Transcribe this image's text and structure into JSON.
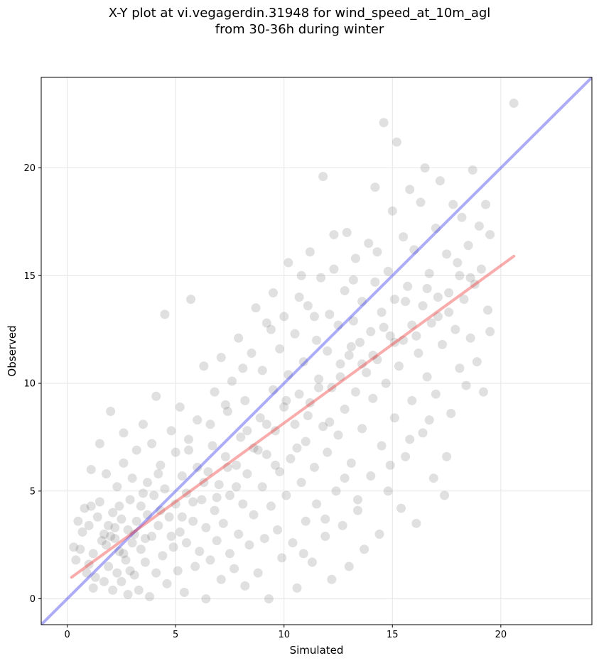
{
  "chart_data": {
    "type": "scatter",
    "title_line1": "X-Y plot at vi.vegagerdin.31948 for wind_speed_at_10m_agl",
    "title_line2": "from 30-36h during winter",
    "xlabel": "Simulated",
    "ylabel": "Observed",
    "xlim": [
      -1.2,
      24.2
    ],
    "ylim": [
      -1.2,
      24.2
    ],
    "xticks": [
      0,
      5,
      10,
      15,
      20
    ],
    "yticks": [
      0,
      5,
      10,
      15,
      20
    ],
    "grid": true,
    "point_color": "#555555",
    "reference_line": {
      "name": "1:1 line",
      "color": "#3030ee",
      "x": [
        -1.2,
        24.2
      ],
      "y": [
        -1.2,
        24.2
      ]
    },
    "regression_line": {
      "name": "fit",
      "color": "#ee3030",
      "x": [
        0.2,
        20.6
      ],
      "y": [
        1.0,
        15.9
      ]
    },
    "points": [
      [
        0.3,
        2.4
      ],
      [
        0.4,
        1.8
      ],
      [
        0.5,
        3.6
      ],
      [
        0.6,
        2.3
      ],
      [
        0.7,
        3.1
      ],
      [
        0.8,
        4.2
      ],
      [
        0.9,
        1.2
      ],
      [
        1.0,
        1.6
      ],
      [
        1.0,
        3.4
      ],
      [
        1.1,
        4.3
      ],
      [
        1.1,
        6.0
      ],
      [
        1.2,
        0.5
      ],
      [
        1.2,
        2.1
      ],
      [
        1.3,
        1.0
      ],
      [
        1.4,
        3.8
      ],
      [
        1.5,
        4.5
      ],
      [
        1.5,
        7.2
      ],
      [
        1.6,
        2.7
      ],
      [
        1.7,
        0.8
      ],
      [
        1.7,
        3.0
      ],
      [
        1.8,
        2.5
      ],
      [
        1.8,
        5.8
      ],
      [
        1.9,
        1.5
      ],
      [
        2.0,
        2.9
      ],
      [
        2.0,
        8.7
      ],
      [
        2.1,
        0.4
      ],
      [
        2.1,
        4.0
      ],
      [
        2.2,
        3.3
      ],
      [
        2.3,
        1.2
      ],
      [
        2.3,
        5.2
      ],
      [
        2.4,
        2.2
      ],
      [
        2.5,
        0.8
      ],
      [
        2.5,
        3.7
      ],
      [
        2.6,
        6.3
      ],
      [
        2.6,
        7.7
      ],
      [
        2.7,
        1.8
      ],
      [
        2.8,
        3.2
      ],
      [
        2.8,
        0.2
      ],
      [
        2.9,
        4.6
      ],
      [
        3.0,
        2.6
      ],
      [
        3.0,
        5.6
      ],
      [
        3.1,
        1.1
      ],
      [
        3.2,
        3.6
      ],
      [
        3.2,
        6.9
      ],
      [
        3.3,
        0.4
      ],
      [
        3.4,
        2.3
      ],
      [
        3.4,
        4.3
      ],
      [
        3.5,
        8.1
      ],
      [
        3.6,
        1.7
      ],
      [
        3.7,
        3.9
      ],
      [
        3.7,
        5.4
      ],
      [
        3.8,
        0.1
      ],
      [
        3.9,
        2.9
      ],
      [
        3.9,
        7.2
      ],
      [
        4.0,
        4.8
      ],
      [
        4.1,
        1.2
      ],
      [
        4.1,
        9.4
      ],
      [
        4.2,
        3.4
      ],
      [
        4.3,
        6.2
      ],
      [
        4.4,
        2.0
      ],
      [
        4.5,
        5.1
      ],
      [
        4.5,
        13.2
      ],
      [
        4.6,
        0.7
      ],
      [
        4.7,
        3.8
      ],
      [
        4.8,
        7.8
      ],
      [
        4.9,
        2.4
      ],
      [
        5.0,
        4.4
      ],
      [
        5.0,
        6.8
      ],
      [
        5.1,
        1.3
      ],
      [
        5.2,
        3.1
      ],
      [
        5.2,
        8.9
      ],
      [
        5.3,
        5.7
      ],
      [
        5.4,
        0.3
      ],
      [
        5.5,
        2.6
      ],
      [
        5.5,
        4.9
      ],
      [
        5.6,
        7.4
      ],
      [
        5.7,
        13.9
      ],
      [
        5.8,
        3.6
      ],
      [
        5.9,
        1.5
      ],
      [
        6.0,
        6.1
      ],
      [
        6.0,
        8.3
      ],
      [
        6.1,
        2.2
      ],
      [
        6.2,
        4.6
      ],
      [
        6.3,
        10.8
      ],
      [
        6.4,
        0.0
      ],
      [
        6.4,
        3.3
      ],
      [
        6.5,
        5.9
      ],
      [
        6.6,
        1.8
      ],
      [
        6.7,
        7.1
      ],
      [
        6.8,
        4.1
      ],
      [
        6.8,
        9.6
      ],
      [
        6.9,
        2.7
      ],
      [
        7.0,
        5.3
      ],
      [
        7.1,
        11.2
      ],
      [
        7.1,
        0.9
      ],
      [
        7.2,
        3.5
      ],
      [
        7.3,
        6.6
      ],
      [
        7.4,
        8.7
      ],
      [
        7.5,
        2.1
      ],
      [
        7.5,
        4.8
      ],
      [
        7.6,
        10.1
      ],
      [
        7.7,
        1.4
      ],
      [
        7.8,
        6.2
      ],
      [
        7.9,
        3.0
      ],
      [
        7.9,
        12.1
      ],
      [
        8.0,
        7.5
      ],
      [
        8.1,
        4.4
      ],
      [
        8.2,
        9.2
      ],
      [
        8.2,
        0.6
      ],
      [
        8.3,
        5.8
      ],
      [
        8.4,
        2.5
      ],
      [
        8.5,
        11.4
      ],
      [
        8.6,
        7.0
      ],
      [
        8.6,
        3.9
      ],
      [
        8.7,
        13.5
      ],
      [
        8.8,
        1.2
      ],
      [
        8.9,
        8.4
      ],
      [
        9.0,
        5.2
      ],
      [
        9.0,
        10.6
      ],
      [
        9.1,
        2.8
      ],
      [
        9.2,
        6.7
      ],
      [
        9.2,
        12.8
      ],
      [
        9.3,
        0.0
      ],
      [
        9.4,
        4.3
      ],
      [
        9.5,
        9.7
      ],
      [
        9.5,
        14.2
      ],
      [
        9.6,
        7.8
      ],
      [
        9.7,
        3.2
      ],
      [
        9.8,
        11.6
      ],
      [
        9.8,
        5.9
      ],
      [
        9.9,
        1.9
      ],
      [
        10.0,
        8.9
      ],
      [
        10.0,
        13.1
      ],
      [
        10.1,
        4.8
      ],
      [
        10.2,
        10.4
      ],
      [
        10.2,
        15.6
      ],
      [
        10.3,
        6.5
      ],
      [
        10.4,
        2.6
      ],
      [
        10.5,
        12.3
      ],
      [
        10.5,
        8.1
      ],
      [
        10.6,
        0.5
      ],
      [
        10.7,
        9.5
      ],
      [
        10.7,
        14.0
      ],
      [
        10.8,
        5.4
      ],
      [
        10.9,
        11.0
      ],
      [
        11.0,
        3.6
      ],
      [
        11.0,
        7.3
      ],
      [
        11.1,
        13.6
      ],
      [
        11.2,
        16.1
      ],
      [
        11.2,
        9.1
      ],
      [
        11.3,
        1.7
      ],
      [
        11.4,
        6.1
      ],
      [
        11.5,
        12.0
      ],
      [
        11.5,
        4.4
      ],
      [
        11.6,
        10.2
      ],
      [
        11.7,
        14.9
      ],
      [
        11.8,
        8.0
      ],
      [
        11.8,
        19.6
      ],
      [
        11.9,
        2.9
      ],
      [
        12.0,
        11.5
      ],
      [
        12.0,
        6.8
      ],
      [
        12.1,
        13.2
      ],
      [
        12.2,
        9.8
      ],
      [
        12.2,
        0.9
      ],
      [
        12.3,
        15.3
      ],
      [
        12.4,
        5.0
      ],
      [
        12.5,
        12.7
      ],
      [
        12.5,
        7.6
      ],
      [
        12.6,
        10.9
      ],
      [
        12.7,
        3.4
      ],
      [
        12.8,
        14.3
      ],
      [
        12.8,
        8.8
      ],
      [
        12.9,
        17.0
      ],
      [
        13.0,
        11.3
      ],
      [
        13.0,
        1.5
      ],
      [
        13.1,
        6.3
      ],
      [
        13.2,
        12.9
      ],
      [
        13.3,
        9.6
      ],
      [
        13.3,
        15.8
      ],
      [
        13.4,
        4.1
      ],
      [
        13.5,
        11.9
      ],
      [
        13.6,
        7.9
      ],
      [
        13.6,
        13.8
      ],
      [
        13.7,
        2.3
      ],
      [
        13.8,
        10.5
      ],
      [
        13.9,
        16.5
      ],
      [
        14.0,
        12.4
      ],
      [
        14.0,
        5.7
      ],
      [
        14.1,
        9.3
      ],
      [
        14.2,
        14.7
      ],
      [
        14.2,
        19.1
      ],
      [
        14.3,
        11.1
      ],
      [
        14.4,
        3.0
      ],
      [
        14.5,
        13.3
      ],
      [
        14.5,
        7.1
      ],
      [
        14.6,
        22.1
      ],
      [
        14.7,
        10.0
      ],
      [
        14.8,
        15.2
      ],
      [
        14.8,
        5.0
      ],
      [
        14.9,
        12.2
      ],
      [
        15.0,
        18.0
      ],
      [
        15.1,
        8.4
      ],
      [
        15.1,
        13.9
      ],
      [
        15.2,
        21.2
      ],
      [
        15.3,
        10.8
      ],
      [
        15.4,
        4.2
      ],
      [
        15.5,
        16.8
      ],
      [
        15.5,
        12.0
      ],
      [
        15.6,
        6.6
      ],
      [
        15.7,
        14.5
      ],
      [
        15.8,
        19.0
      ],
      [
        15.9,
        9.2
      ],
      [
        15.9,
        12.7
      ],
      [
        16.0,
        16.2
      ],
      [
        16.1,
        3.5
      ],
      [
        16.2,
        11.4
      ],
      [
        16.3,
        18.4
      ],
      [
        16.4,
        13.6
      ],
      [
        16.4,
        7.7
      ],
      [
        16.5,
        20.0
      ],
      [
        16.6,
        10.3
      ],
      [
        16.7,
        15.1
      ],
      [
        16.8,
        12.8
      ],
      [
        16.9,
        5.6
      ],
      [
        17.0,
        17.2
      ],
      [
        17.0,
        9.5
      ],
      [
        17.1,
        14.0
      ],
      [
        17.2,
        19.4
      ],
      [
        17.3,
        11.8
      ],
      [
        17.4,
        4.8
      ],
      [
        17.5,
        16.0
      ],
      [
        17.6,
        13.3
      ],
      [
        17.7,
        8.6
      ],
      [
        17.8,
        18.3
      ],
      [
        17.9,
        12.5
      ],
      [
        18.0,
        15.6
      ],
      [
        18.1,
        10.7
      ],
      [
        18.2,
        17.7
      ],
      [
        18.3,
        13.9
      ],
      [
        18.4,
        9.9
      ],
      [
        18.5,
        16.4
      ],
      [
        18.6,
        12.1
      ],
      [
        18.7,
        19.9
      ],
      [
        18.8,
        14.6
      ],
      [
        18.9,
        11.0
      ],
      [
        19.0,
        17.3
      ],
      [
        19.1,
        15.3
      ],
      [
        19.2,
        9.6
      ],
      [
        19.3,
        18.3
      ],
      [
        19.4,
        13.4
      ],
      [
        19.5,
        16.9
      ],
      [
        19.5,
        12.4
      ],
      [
        20.6,
        23.0
      ],
      [
        2.2,
        2.8
      ],
      [
        2.6,
        2.1
      ],
      [
        3.1,
        3.0
      ],
      [
        1.9,
        3.4
      ],
      [
        2.4,
        4.3
      ],
      [
        2.9,
        1.3
      ],
      [
        3.6,
        2.8
      ],
      [
        4.3,
        4.1
      ],
      [
        4.8,
        2.9
      ],
      [
        5.3,
        3.8
      ],
      [
        5.8,
        4.5
      ],
      [
        6.3,
        5.4
      ],
      [
        6.9,
        4.7
      ],
      [
        7.4,
        6.1
      ],
      [
        7.8,
        5.2
      ],
      [
        8.3,
        7.8
      ],
      [
        8.8,
        6.9
      ],
      [
        9.2,
        8.1
      ],
      [
        9.6,
        6.2
      ],
      [
        10.1,
        9.2
      ],
      [
        10.6,
        7.0
      ],
      [
        11.1,
        8.5
      ],
      [
        11.6,
        9.8
      ],
      [
        12.1,
        8.2
      ],
      [
        12.6,
        10.3
      ],
      [
        13.1,
        11.7
      ],
      [
        13.6,
        10.9
      ],
      [
        14.1,
        11.3
      ],
      [
        14.6,
        12.6
      ],
      [
        15.1,
        11.9
      ],
      [
        15.6,
        13.8
      ],
      [
        16.1,
        12.2
      ],
      [
        16.6,
        14.4
      ],
      [
        17.1,
        13.1
      ],
      [
        17.6,
        14.2
      ],
      [
        18.1,
        15.0
      ],
      [
        18.6,
        14.9
      ],
      [
        9.4,
        12.5
      ],
      [
        10.8,
        15.0
      ],
      [
        11.4,
        13.1
      ],
      [
        12.3,
        16.9
      ],
      [
        13.2,
        14.8
      ],
      [
        14.3,
        16.1
      ],
      [
        8.1,
        10.7
      ],
      [
        7.3,
        9.0
      ],
      [
        6.6,
        8.1
      ],
      [
        5.6,
        6.9
      ],
      [
        4.2,
        5.8
      ],
      [
        3.5,
        4.9
      ],
      [
        12.8,
        5.6
      ],
      [
        13.4,
        4.6
      ],
      [
        14.9,
        6.2
      ],
      [
        15.8,
        7.4
      ],
      [
        16.7,
        8.3
      ],
      [
        17.5,
        6.6
      ],
      [
        11.9,
        3.7
      ],
      [
        10.9,
        2.1
      ]
    ]
  }
}
